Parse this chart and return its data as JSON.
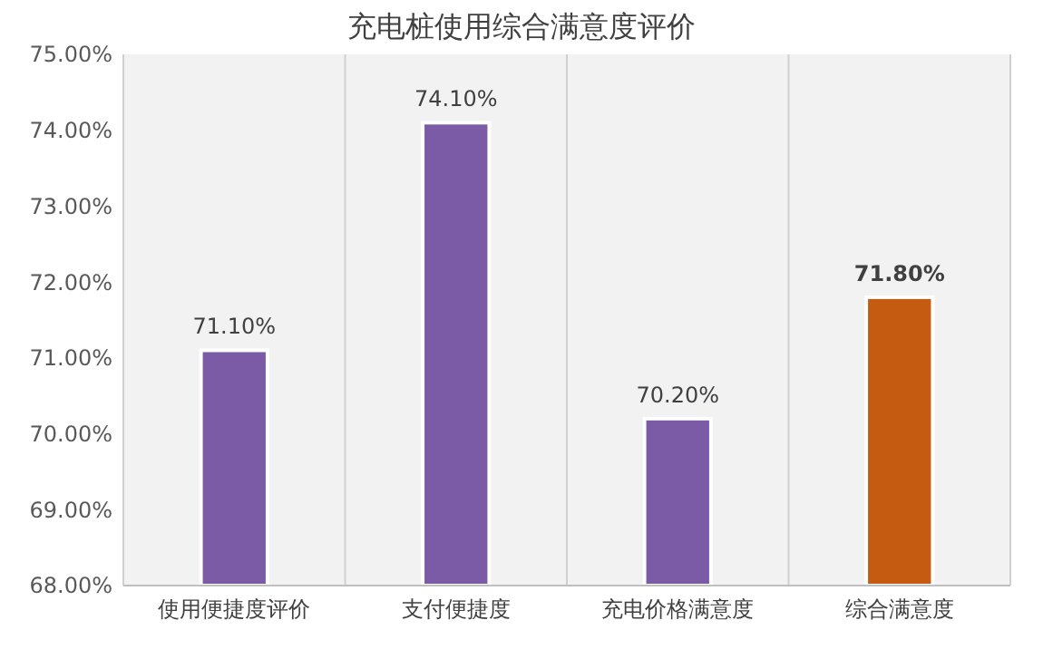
{
  "chart_data": {
    "type": "bar",
    "title": "充电桩使用综合满意度评价",
    "categories": [
      "使用便捷度评价",
      "支付便捷度",
      "充电价格满意度",
      "综合满意度"
    ],
    "values": [
      71.1,
      74.1,
      70.2,
      71.8
    ],
    "colors": [
      "#7b5aa6",
      "#7b5aa6",
      "#7b5aa6",
      "#c55a11"
    ],
    "value_labels": [
      "71.10%",
      "74.10%",
      "70.20%",
      "71.80%"
    ],
    "ylim": [
      68,
      75
    ],
    "yticks": [
      {
        "value": 68,
        "label": "68.00%"
      },
      {
        "value": 69,
        "label": "69.00%"
      },
      {
        "value": 70,
        "label": "70.00%"
      },
      {
        "value": 71,
        "label": "71.00%"
      },
      {
        "value": 72,
        "label": "72.00%"
      },
      {
        "value": 73,
        "label": "73.00%"
      },
      {
        "value": 74,
        "label": "74.00%"
      },
      {
        "value": 75,
        "label": "75.00%"
      }
    ],
    "grid": "x"
  }
}
